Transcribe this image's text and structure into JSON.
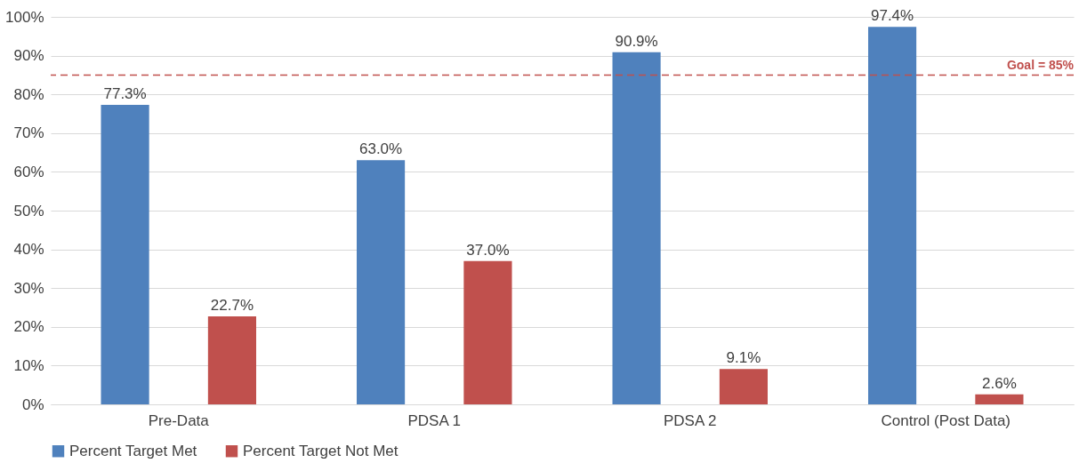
{
  "chart_data": {
    "type": "bar",
    "categories": [
      "Pre-Data",
      "PDSA 1",
      "PDSA 2",
      "Control (Post Data)"
    ],
    "series": [
      {
        "name": "Percent Target Met",
        "color": "#4f81bd",
        "values": [
          77.3,
          63.0,
          90.9,
          97.4
        ],
        "value_labels": [
          "77.3%",
          "63.0%",
          "90.9%",
          "97.4%"
        ]
      },
      {
        "name": "Percent Target Not Met",
        "color": "#c0504d",
        "values": [
          22.7,
          37.0,
          9.1,
          2.6
        ],
        "value_labels": [
          "22.7%",
          "37.0%",
          "9.1%",
          "2.6%"
        ]
      }
    ],
    "ylim": [
      0,
      100
    ],
    "yticks": [
      {
        "value": 0,
        "label": "0%"
      },
      {
        "value": 10,
        "label": "10%"
      },
      {
        "value": 20,
        "label": "20%"
      },
      {
        "value": 30,
        "label": "30%"
      },
      {
        "value": 40,
        "label": "40%"
      },
      {
        "value": 50,
        "label": "50%"
      },
      {
        "value": 60,
        "label": "60%"
      },
      {
        "value": 70,
        "label": "70%"
      },
      {
        "value": 80,
        "label": "80%"
      },
      {
        "value": 90,
        "label": "90%"
      },
      {
        "value": 100,
        "label": "100%"
      }
    ],
    "ref_lines": [
      {
        "axis": "y",
        "value": 85,
        "label": "Goal = 85%",
        "color": "#c0504d",
        "line_style": "dashed"
      }
    ],
    "grid": "y",
    "legend": "bottom"
  }
}
